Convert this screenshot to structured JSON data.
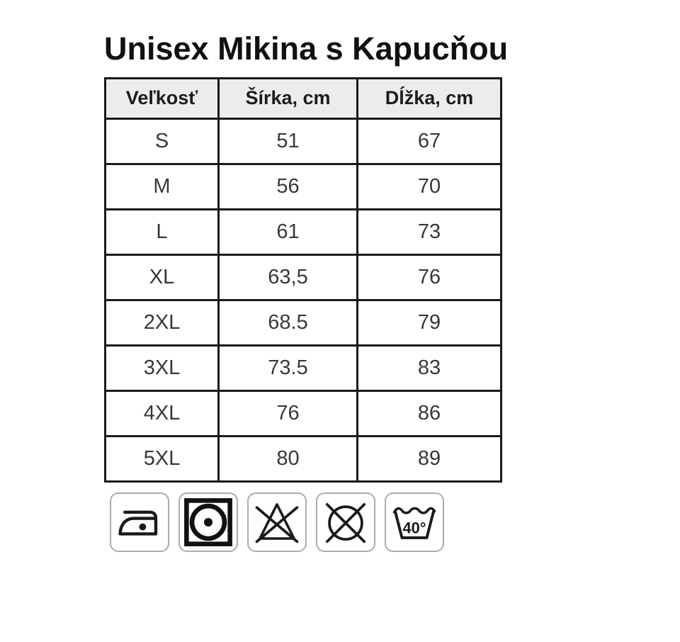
{
  "chart_data": {
    "type": "table",
    "title": "Unisex Mikina s Kapucňou",
    "columns": [
      "Veľkosť",
      "Šírka, cm",
      "Dĺžka, cm"
    ],
    "rows": [
      [
        "S",
        "51",
        "67"
      ],
      [
        "M",
        "56",
        "70"
      ],
      [
        "L",
        "61",
        "73"
      ],
      [
        "XL",
        "63,5",
        "76"
      ],
      [
        "2XL",
        "68.5",
        "79"
      ],
      [
        "3XL",
        "73.5",
        "83"
      ],
      [
        "4XL",
        "76",
        "86"
      ],
      [
        "5XL",
        "80",
        "89"
      ]
    ]
  },
  "care": {
    "wash_temperature": "40°",
    "icons": [
      "iron-low-icon",
      "tumble-dry-low-icon",
      "do-not-bleach-icon",
      "do-not-dry-clean-icon",
      "wash-40-icon"
    ]
  },
  "colors": {
    "background": "#ffffff",
    "table_border": "#1a1a1a",
    "header_background": "#ececec",
    "body_text": "#383838",
    "icon_box_border": "#acacac",
    "icon_stroke": "#1a1a1a"
  }
}
